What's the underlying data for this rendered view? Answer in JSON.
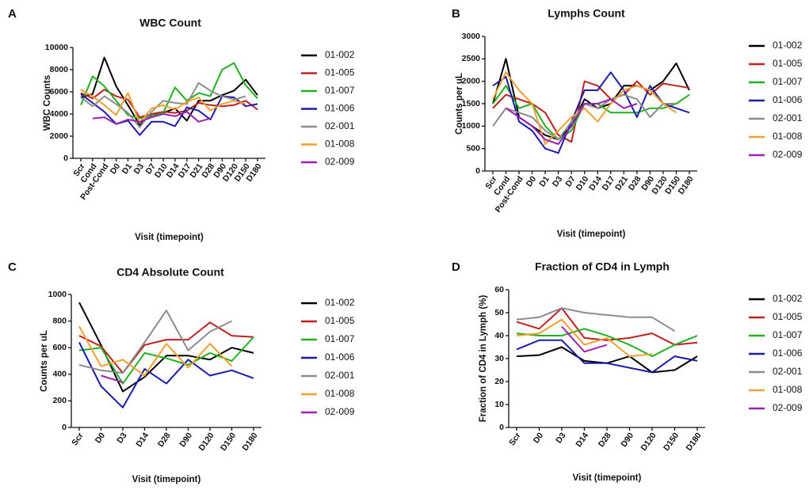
{
  "chart_data": [
    {
      "type": "line",
      "label": "A",
      "title": "WBC Count",
      "y_label": "WBC Counts",
      "x_label": "Visit  (timepoint)",
      "categories": [
        "Scr",
        "Cond",
        "Post-Cond",
        "D0",
        "D1",
        "D3",
        "D7",
        "D10",
        "D14",
        "D17",
        "D21",
        "D28",
        "D90",
        "D120",
        "D150",
        "D180"
      ],
      "ylim": [
        0,
        10000
      ],
      "yticks": [
        0,
        2000,
        4000,
        6000,
        8000,
        10000
      ],
      "series": [
        {
          "name": "01-002",
          "color": "#000000",
          "values": [
            5500,
            5800,
            9100,
            6500,
            4800,
            3000,
            4000,
            4100,
            4500,
            3400,
            5200,
            5200,
            5700,
            6100,
            7100,
            5700
          ]
        },
        {
          "name": "01-005",
          "color": "#c0201e",
          "values": [
            5900,
            5400,
            6200,
            5600,
            5300,
            3700,
            4000,
            4200,
            4100,
            4300,
            5000,
            4800,
            4700,
            4800,
            5200,
            4400
          ]
        },
        {
          "name": "01-007",
          "color": "#22b022",
          "values": [
            4800,
            7400,
            6500,
            5200,
            3900,
            3600,
            3800,
            4100,
            6400,
            5200,
            5900,
            5600,
            8000,
            8600,
            6600,
            5400
          ]
        },
        {
          "name": "01-006",
          "color": "#1c1ca8",
          "values": [
            5800,
            5000,
            4200,
            3100,
            3400,
            2100,
            3300,
            3300,
            2900,
            4600,
            4300,
            3500,
            5600,
            5500,
            4700,
            4900
          ]
        },
        {
          "name": "02-001",
          "color": "#8c8c8c",
          "values": [
            5500,
            4700,
            5600,
            4900,
            4100,
            2800,
            4200,
            5200,
            5000,
            4900,
            6800,
            6100,
            5600,
            5300,
            5600,
            null
          ]
        },
        {
          "name": "01-008",
          "color": "#f0a030",
          "values": [
            6200,
            5600,
            4800,
            3900,
            5900,
            3200,
            4500,
            4800,
            4400,
            5100,
            5500,
            4300,
            4900,
            5200,
            4900,
            null
          ]
        },
        {
          "name": "02-009",
          "color": "#9a22b0",
          "values": [
            null,
            3600,
            3700,
            3100,
            3500,
            3300,
            3700,
            4000,
            3800,
            4200,
            3300,
            3600,
            null,
            null,
            null,
            null
          ]
        }
      ]
    },
    {
      "type": "line",
      "label": "B",
      "title": "Lymphs Count",
      "y_label": "Counts per uL",
      "x_label": "Visit  (timepoint)",
      "categories": [
        "Scr",
        "Cond",
        "Post-Cond",
        "D0",
        "D1",
        "D3",
        "D7",
        "D10",
        "D14",
        "D17",
        "D21",
        "D28",
        "D90",
        "D120",
        "D150",
        "D180"
      ],
      "ylim": [
        0,
        3000
      ],
      "yticks": [
        0,
        500,
        1000,
        1500,
        2000,
        2500,
        3000
      ],
      "series": [
        {
          "name": "01-002",
          "color": "#000000",
          "values": [
            1500,
            2500,
            1200,
            1000,
            800,
            700,
            1000,
            1600,
            1400,
            1500,
            1900,
            1900,
            1800,
            2000,
            2400,
            1800
          ]
        },
        {
          "name": "01-005",
          "color": "#c0201e",
          "values": [
            1400,
            1700,
            1600,
            1500,
            1300,
            800,
            650,
            2000,
            1900,
            1600,
            1700,
            2000,
            1700,
            1950,
            1900,
            1850
          ]
        },
        {
          "name": "01-007",
          "color": "#22b022",
          "values": [
            1500,
            1900,
            1400,
            1500,
            1000,
            700,
            900,
            1500,
            1500,
            1300,
            1300,
            1300,
            1400,
            1400,
            1500,
            1700
          ]
        },
        {
          "name": "01-006",
          "color": "#1c1ca8",
          "values": [
            1900,
            2100,
            1100,
            900,
            500,
            400,
            1100,
            1800,
            1800,
            2200,
            1800,
            1200,
            1900,
            1500,
            1400,
            1300
          ]
        },
        {
          "name": "02-001",
          "color": "#8c8c8c",
          "values": [
            1000,
            1400,
            1300,
            1200,
            900,
            700,
            1100,
            1500,
            1400,
            1600,
            1700,
            1600,
            1200,
            1500,
            1500,
            null
          ]
        },
        {
          "name": "01-008",
          "color": "#f0a030",
          "values": [
            1600,
            2200,
            1800,
            1500,
            600,
            900,
            1200,
            1400,
            1100,
            1500,
            1800,
            1900,
            1800,
            1500,
            1300,
            null
          ]
        },
        {
          "name": "02-009",
          "color": "#9a22b0",
          "values": [
            null,
            1400,
            1200,
            1000,
            700,
            600,
            1000,
            1500,
            1500,
            1600,
            1400,
            1500,
            null,
            null,
            null,
            null
          ]
        }
      ]
    },
    {
      "type": "line",
      "label": "C",
      "title": "CD4 Absolute Count",
      "y_label": "Counts per uL",
      "x_label": "Visit  (timepoint)",
      "categories": [
        "Scr",
        "D0",
        "D3",
        "D14",
        "D28",
        "D90",
        "D120",
        "D150",
        "D180"
      ],
      "ylim": [
        0,
        1000
      ],
      "yticks": [
        0,
        200,
        400,
        600,
        800,
        1000
      ],
      "series": [
        {
          "name": "01-002",
          "color": "#000000",
          "values": [
            940,
            620,
            270,
            380,
            540,
            540,
            510,
            600,
            560
          ]
        },
        {
          "name": "01-005",
          "color": "#c0201e",
          "values": [
            690,
            610,
            410,
            620,
            660,
            660,
            790,
            690,
            680
          ]
        },
        {
          "name": "01-007",
          "color": "#22b022",
          "values": [
            580,
            600,
            330,
            560,
            520,
            470,
            560,
            500,
            680
          ]
        },
        {
          "name": "01-006",
          "color": "#1c1ca8",
          "values": [
            640,
            310,
            150,
            440,
            330,
            510,
            390,
            430,
            370
          ]
        },
        {
          "name": "02-001",
          "color": "#8c8c8c",
          "values": [
            470,
            430,
            410,
            640,
            880,
            580,
            720,
            800,
            null
          ]
        },
        {
          "name": "01-008",
          "color": "#f0a030",
          "values": [
            760,
            460,
            510,
            390,
            630,
            450,
            630,
            460,
            null
          ]
        },
        {
          "name": "02-009",
          "color": "#9a22b0",
          "values": [
            null,
            390,
            340,
            null,
            null,
            null,
            null,
            null,
            null
          ]
        }
      ]
    },
    {
      "type": "line",
      "label": "D",
      "title": "Fraction of CD4 in Lymph",
      "y_label": "Fraction of CD4 in Lymph  (%)",
      "x_label": "Visit  (timepoint)",
      "categories": [
        "Scr",
        "D0",
        "D3",
        "D14",
        "D28",
        "D90",
        "D120",
        "D150",
        "D180"
      ],
      "ylim": [
        0,
        60
      ],
      "yticks": [
        0,
        10,
        20,
        30,
        40,
        50,
        60
      ],
      "series": [
        {
          "name": "01-002",
          "color": "#000000",
          "values": [
            31,
            31.5,
            35,
            29,
            28,
            31,
            24,
            25,
            31
          ]
        },
        {
          "name": "01-005",
          "color": "#c0201e",
          "values": [
            46,
            43,
            52,
            39,
            38,
            39,
            41,
            36,
            37
          ]
        },
        {
          "name": "01-007",
          "color": "#22b022",
          "values": [
            41,
            40,
            40,
            43,
            40,
            36,
            31,
            36,
            40
          ]
        },
        {
          "name": "01-006",
          "color": "#1c1ca8",
          "values": [
            34,
            38,
            38,
            28,
            28,
            26,
            24,
            31,
            29
          ]
        },
        {
          "name": "02-001",
          "color": "#8c8c8c",
          "values": [
            47,
            48,
            52,
            50,
            49,
            48,
            48,
            42,
            null
          ]
        },
        {
          "name": "01-008",
          "color": "#f0a030",
          "values": [
            40,
            41,
            47,
            36,
            39,
            31,
            32,
            null,
            null
          ]
        },
        {
          "name": "02-009",
          "color": "#9a22b0",
          "values": [
            null,
            null,
            44,
            33,
            36,
            null,
            null,
            null,
            null
          ]
        }
      ]
    }
  ]
}
